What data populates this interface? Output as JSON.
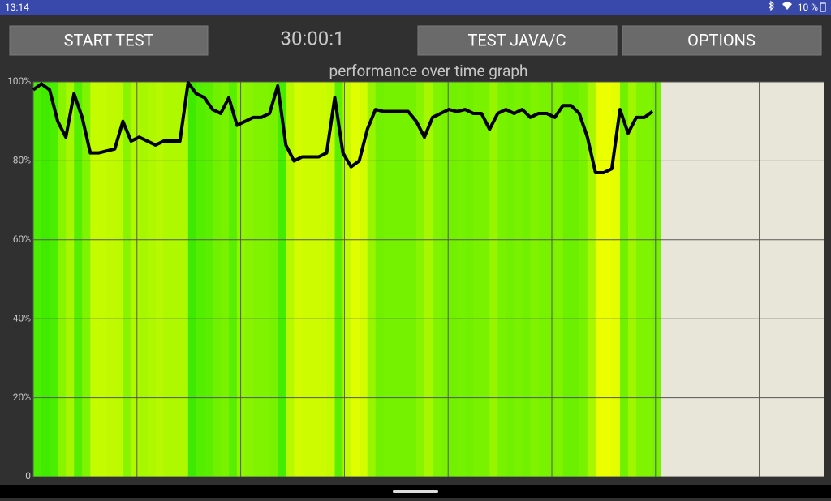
{
  "status_bar": {
    "time": "13:14",
    "battery": "10 %"
  },
  "buttons": [
    "START TEST",
    "TEST JAVA/C",
    "OPTIONS"
  ],
  "timer": "30:00:1",
  "chart_data": {
    "type": "line",
    "title": "performance over time graph",
    "x": [
      0,
      1,
      2,
      3,
      4,
      5,
      6,
      7,
      8,
      9,
      10,
      11,
      12,
      13,
      14,
      15,
      16,
      17,
      18,
      19,
      20,
      21,
      22,
      23,
      24,
      25,
      26,
      27,
      28,
      29,
      30,
      31,
      32,
      33,
      34,
      35,
      36,
      37,
      38,
      39,
      40,
      41,
      42,
      43,
      44,
      45,
      46,
      47,
      48,
      49,
      50,
      51,
      52,
      53,
      54,
      55,
      56,
      57,
      58,
      59,
      60,
      61,
      62,
      63,
      64,
      65,
      66,
      67,
      68,
      69,
      70,
      71,
      72,
      73,
      74,
      75,
      76
    ],
    "values": [
      98,
      99.5,
      98,
      90,
      86,
      97,
      91,
      82,
      82,
      82.5,
      83,
      90,
      85,
      86,
      85,
      84,
      85,
      85,
      85,
      99.8,
      97,
      96,
      93,
      92,
      96,
      89,
      90,
      91,
      91,
      92,
      99,
      84,
      80,
      81,
      81,
      81,
      82,
      96,
      82,
      78.5,
      80,
      88,
      93,
      92.5,
      92.5,
      92.5,
      92.5,
      90,
      86,
      91,
      92,
      93,
      92.5,
      93,
      92,
      92,
      88,
      92,
      93,
      92,
      93,
      91,
      92,
      92,
      91,
      94,
      94,
      92,
      86,
      77,
      77,
      78,
      93,
      87,
      91,
      91,
      92.5
    ],
    "color": "#000000",
    "xlim": [
      0,
      97
    ],
    "ylim": [
      0,
      100
    ],
    "yticks": [
      0,
      {
        "value": 20,
        "label": "20%"
      },
      {
        "value": 40,
        "label": "40%"
      },
      {
        "value": 60,
        "label": "60%"
      },
      {
        "value": 80,
        "label": "80%"
      },
      {
        "value": 100,
        "label": "100%"
      }
    ],
    "grid": true
  }
}
